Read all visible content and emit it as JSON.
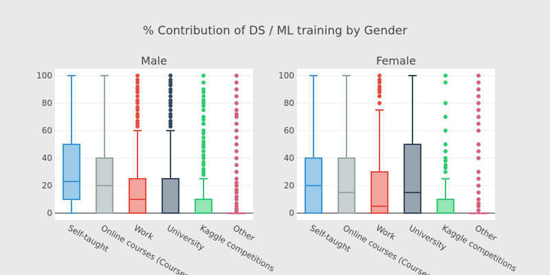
{
  "chart_data": {
    "type": "box",
    "title": "% Contribution of DS / ML training by Gender",
    "categories": [
      "Self-taught",
      "Online courses (Coursera, Udemy, edX, etc.)",
      "Work",
      "University",
      "Kaggle competitions",
      "Other"
    ],
    "category_labels_visible": [
      "Self-taught",
      "Online courses (Courser",
      "Work",
      "University",
      "Kaggle competitions",
      "Other"
    ],
    "colors": [
      "#3d97d3",
      "#95a5a6",
      "#e74c3c",
      "#34495e",
      "#2ecc71",
      "#d35f7d"
    ],
    "fill_colors": [
      "#9ccbea",
      "#c9d1d2",
      "#f4a59d",
      "#97a3ae",
      "#94e4b6",
      "#eeb0bf"
    ],
    "ylim": [
      -5,
      105
    ],
    "yticks": [
      0,
      20,
      40,
      60,
      80,
      100
    ],
    "grid": true,
    "panels": [
      {
        "name": "Male",
        "boxes": [
          {
            "q1": 10,
            "median": 23,
            "q3": 50,
            "whisker_low": 0,
            "whisker_high": 100,
            "outliers": []
          },
          {
            "q1": 0,
            "median": 20,
            "q3": 40,
            "whisker_low": 0,
            "whisker_high": 100,
            "outliers": []
          },
          {
            "q1": 0,
            "median": 10,
            "q3": 25,
            "whisker_low": 0,
            "whisker_high": 60,
            "outliers": [
              63,
              65,
              67,
              70,
              72,
              75,
              77,
              80,
              82,
              85,
              88,
              90,
              92,
              95,
              97,
              100
            ]
          },
          {
            "q1": 0,
            "median": 0,
            "q3": 25,
            "whisker_low": 0,
            "whisker_high": 60,
            "outliers": [
              63,
              65,
              67,
              70,
              72,
              75,
              78,
              80,
              82,
              85,
              88,
              90,
              93,
              95,
              97,
              100
            ]
          },
          {
            "q1": 0,
            "median": 0,
            "q3": 10,
            "whisker_low": 0,
            "whisker_high": 25,
            "outliers": [
              28,
              30,
              32,
              35,
              37,
              40,
              42,
              45,
              48,
              50,
              52,
              55,
              58,
              60,
              65,
              68,
              70,
              75,
              78,
              80,
              82,
              85,
              88,
              90,
              95,
              100
            ]
          },
          {
            "q1": 0,
            "median": 0,
            "q3": 0,
            "whisker_low": 0,
            "whisker_high": 0,
            "outliers": [
              1,
              2,
              3,
              5,
              7,
              10,
              12,
              15,
              17,
              20,
              22,
              25,
              30,
              35,
              40,
              45,
              50,
              55,
              60,
              65,
              70,
              72,
              75,
              80,
              85,
              90,
              95,
              100
            ]
          }
        ]
      },
      {
        "name": "Female",
        "boxes": [
          {
            "q1": 0,
            "median": 20,
            "q3": 40,
            "whisker_low": 0,
            "whisker_high": 100,
            "outliers": []
          },
          {
            "q1": 0,
            "median": 15,
            "q3": 40,
            "whisker_low": 0,
            "whisker_high": 100,
            "outliers": []
          },
          {
            "q1": 0,
            "median": 5,
            "q3": 30,
            "whisker_low": 0,
            "whisker_high": 75,
            "outliers": [
              80,
              85,
              88,
              90,
              92,
              95,
              97,
              100
            ]
          },
          {
            "q1": 0,
            "median": 15,
            "q3": 50,
            "whisker_low": 0,
            "whisker_high": 100,
            "outliers": []
          },
          {
            "q1": 0,
            "median": 0,
            "q3": 10,
            "whisker_low": 0,
            "whisker_high": 25,
            "outliers": [
              30,
              33,
              35,
              38,
              40,
              45,
              50,
              60,
              70,
              80,
              95,
              100
            ]
          },
          {
            "q1": 0,
            "median": 0,
            "q3": 0,
            "whisker_low": 0,
            "whisker_high": 0,
            "outliers": [
              2,
              5,
              7,
              10,
              15,
              20,
              25,
              30,
              40,
              45,
              50,
              60,
              65,
              70,
              75,
              80,
              85,
              90,
              95,
              100
            ]
          }
        ]
      }
    ]
  }
}
